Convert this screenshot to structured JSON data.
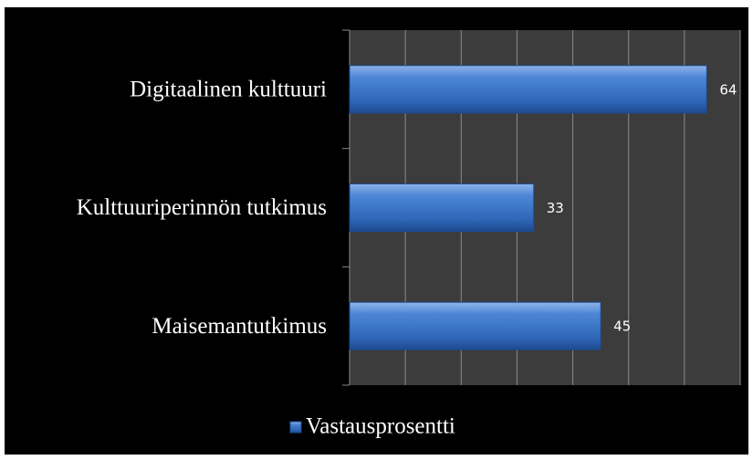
{
  "chart_data": {
    "type": "bar",
    "orientation": "horizontal",
    "categories": [
      "Digitaalinen kulttuuri",
      "Kulttuuriperinnön tutkimus",
      "Maisemantutkimus"
    ],
    "series": [
      {
        "name": "Vastausprosentti",
        "color": "#3a73c4",
        "values": [
          64,
          33,
          45
        ]
      }
    ],
    "xlim": [
      0,
      70
    ],
    "xticks": [
      0,
      10,
      20,
      30,
      40,
      50,
      60,
      70
    ],
    "grid": true,
    "legend": "bottom"
  }
}
